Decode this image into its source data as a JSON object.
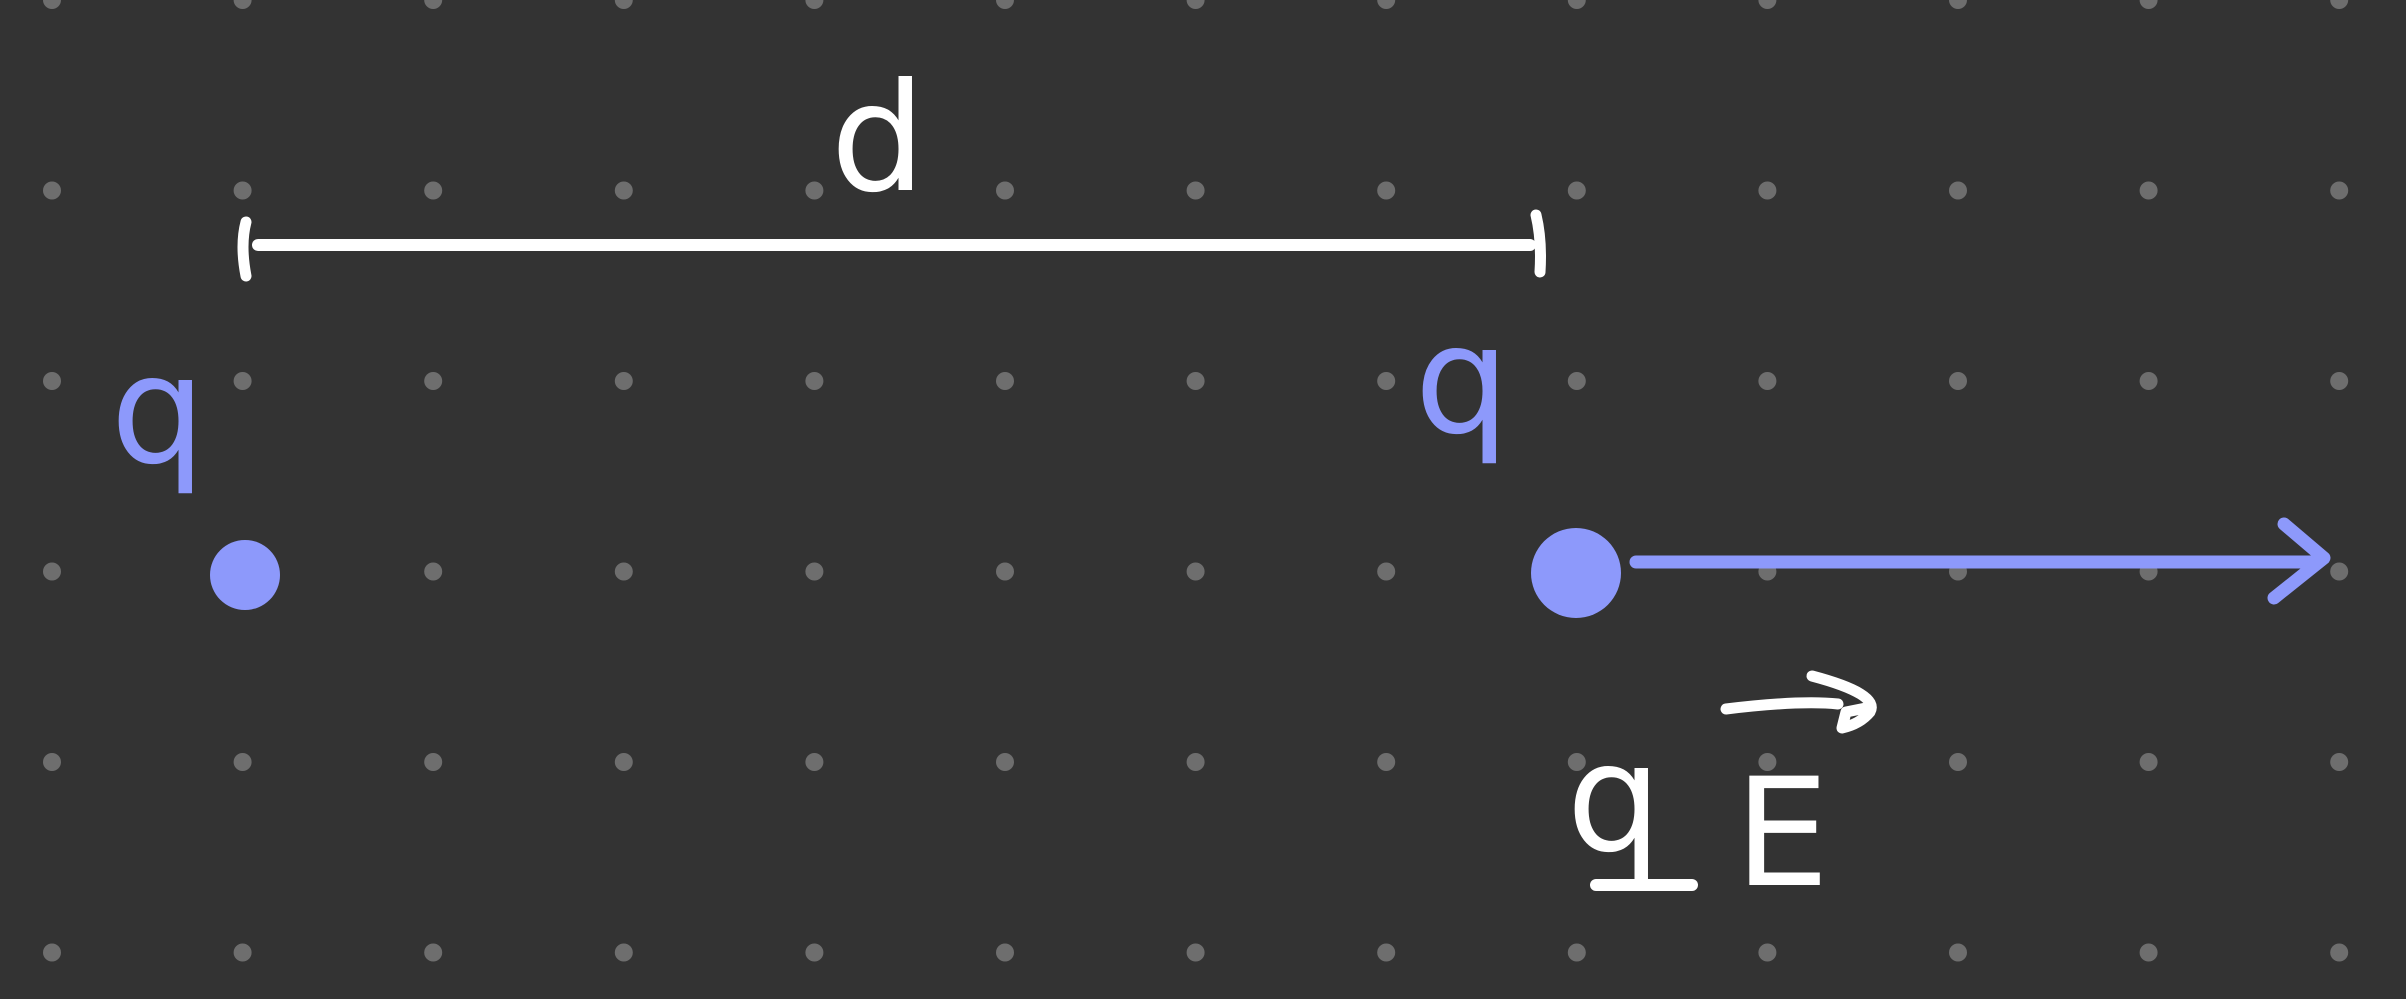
{
  "canvas": {
    "background": "#333333",
    "dot_color": "#6e6e6e"
  },
  "colors": {
    "charge": "#8d99fb",
    "ink": "#ffffff"
  },
  "labels": {
    "distance": "d",
    "charge_left": "q",
    "charge_right": "q",
    "force_q": "q",
    "force_E": "E"
  },
  "icons": {
    "charge_marker": "filled-circle",
    "force_arrow": "arrow-right",
    "vector_hat": "arrow-right"
  }
}
